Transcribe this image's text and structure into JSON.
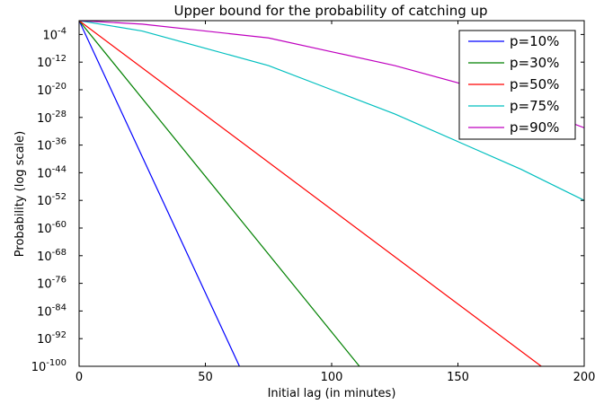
{
  "chart_data": {
    "type": "line",
    "title": "Upper bound for the probability of catching up",
    "xlabel": "Initial lag (in minutes)",
    "ylabel": "Probability (log scale)",
    "xlim": [
      0,
      200
    ],
    "ylim_exponent": [
      -100,
      0
    ],
    "y_scale": "log",
    "x_ticks": [
      0,
      50,
      100,
      150,
      200
    ],
    "y_ticks": [
      {
        "base": "10",
        "exp": "-4",
        "value": -4
      },
      {
        "base": "10",
        "exp": "-12",
        "value": -12
      },
      {
        "base": "10",
        "exp": "-20",
        "value": -20
      },
      {
        "base": "10",
        "exp": "-28",
        "value": -28
      },
      {
        "base": "10",
        "exp": "-36",
        "value": -36
      },
      {
        "base": "10",
        "exp": "-44",
        "value": -44
      },
      {
        "base": "10",
        "exp": "-52",
        "value": -52
      },
      {
        "base": "10",
        "exp": "-60",
        "value": -60
      },
      {
        "base": "10",
        "exp": "-68",
        "value": -68
      },
      {
        "base": "10",
        "exp": "-76",
        "value": -76
      },
      {
        "base": "10",
        "exp": "-84",
        "value": -84
      },
      {
        "base": "10",
        "exp": "-92",
        "value": -92
      },
      {
        "base": "10",
        "exp": "-100",
        "value": -100
      }
    ],
    "legend_position": "top-right",
    "series": [
      {
        "name": "p=10%",
        "color": "#0000ff",
        "points": [
          [
            0,
            0
          ],
          [
            63.5,
            -100
          ]
        ]
      },
      {
        "name": "p=30%",
        "color": "#008000",
        "points": [
          [
            0,
            0
          ],
          [
            111,
            -100
          ]
        ]
      },
      {
        "name": "p=50%",
        "color": "#ff0000",
        "points": [
          [
            0,
            0
          ],
          [
            183,
            -100
          ]
        ]
      },
      {
        "name": "p=75%",
        "color": "#00bfbf",
        "points": [
          [
            0,
            0
          ],
          [
            25,
            -3
          ],
          [
            50,
            -8
          ],
          [
            75,
            -13
          ],
          [
            100,
            -20
          ],
          [
            125,
            -27
          ],
          [
            150,
            -35
          ],
          [
            175,
            -43
          ],
          [
            200,
            -52
          ]
        ]
      },
      {
        "name": "p=90%",
        "color": "#bf00bf",
        "points": [
          [
            0,
            0
          ],
          [
            25,
            -1
          ],
          [
            50,
            -3
          ],
          [
            75,
            -5
          ],
          [
            100,
            -9
          ],
          [
            125,
            -13
          ],
          [
            150,
            -18
          ],
          [
            175,
            -24
          ],
          [
            200,
            -31
          ]
        ]
      }
    ]
  }
}
